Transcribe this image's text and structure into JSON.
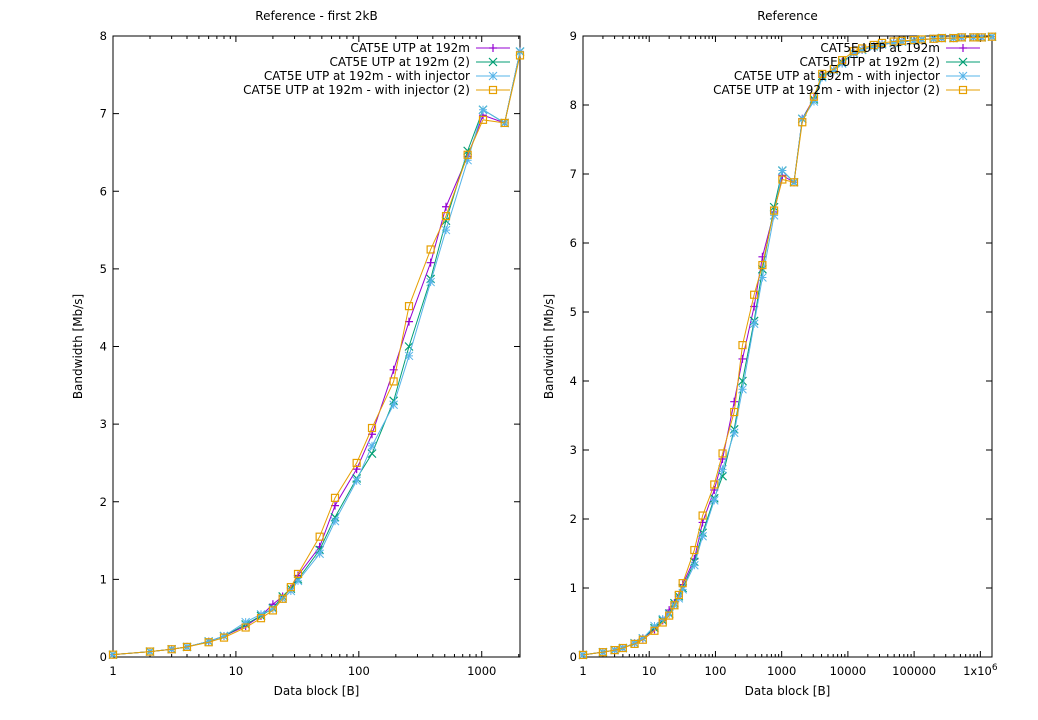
{
  "chart_data": [
    {
      "type": "line",
      "title": "Reference - first 2kB",
      "xlabel": "Data block [B]",
      "ylabel": "Bandwidth [Mb/s]",
      "xscale": "log",
      "xlim": [
        1,
        2048
      ],
      "ylim": [
        0,
        8
      ],
      "xticks": [
        1,
        10,
        100,
        1000
      ],
      "xtick_labels": [
        "1",
        "10",
        "100",
        "1000"
      ],
      "yticks": [
        0,
        1,
        2,
        3,
        4,
        5,
        6,
        7,
        8
      ],
      "ytick_labels": [
        "0",
        "1",
        "2",
        "3",
        "4",
        "5",
        "6",
        "7",
        "8"
      ],
      "grid": false,
      "legend_position": "top-right",
      "series": [
        {
          "name": "CAT5E UTP at 192m",
          "color": "#9400d3",
          "marker": "plus",
          "x": [
            1,
            2,
            3,
            4,
            6,
            8,
            12,
            16,
            20,
            24,
            28,
            32,
            48,
            64,
            96,
            128,
            192,
            256,
            384,
            512,
            768,
            1024,
            1536,
            2048
          ],
          "y": [
            0.03,
            0.07,
            0.1,
            0.13,
            0.2,
            0.27,
            0.4,
            0.53,
            0.68,
            0.78,
            0.88,
            1.05,
            1.42,
            1.95,
            2.42,
            2.87,
            3.7,
            4.32,
            5.08,
            5.8,
            6.45,
            6.98,
            6.88,
            7.8
          ]
        },
        {
          "name": "CAT5E UTP at 192m (2)",
          "color": "#009e73",
          "marker": "x",
          "x": [
            1,
            2,
            3,
            4,
            6,
            8,
            12,
            16,
            20,
            24,
            28,
            32,
            48,
            64,
            96,
            128,
            192,
            256,
            384,
            512,
            768,
            1024,
            1536,
            2048
          ],
          "y": [
            0.03,
            0.07,
            0.1,
            0.13,
            0.2,
            0.27,
            0.42,
            0.53,
            0.63,
            0.78,
            0.88,
            1.0,
            1.38,
            1.8,
            2.3,
            2.62,
            3.3,
            4.0,
            4.87,
            5.62,
            6.52,
            7.05,
            6.88,
            7.8
          ]
        },
        {
          "name": "CAT5E UTP at 192m - with injector",
          "color": "#56b4e9",
          "marker": "star",
          "x": [
            1,
            2,
            3,
            4,
            6,
            8,
            12,
            16,
            20,
            24,
            28,
            32,
            48,
            64,
            96,
            128,
            192,
            256,
            384,
            512,
            768,
            1024,
            1536,
            2048
          ],
          "y": [
            0.03,
            0.07,
            0.1,
            0.13,
            0.2,
            0.27,
            0.45,
            0.55,
            0.62,
            0.75,
            0.85,
            0.98,
            1.33,
            1.75,
            2.27,
            2.72,
            3.25,
            3.88,
            4.83,
            5.5,
            6.4,
            7.05,
            6.88,
            7.8
          ]
        },
        {
          "name": "CAT5E UTP at 192m - with injector (2)",
          "color": "#e69f00",
          "marker": "square",
          "x": [
            1,
            2,
            3,
            4,
            6,
            8,
            12,
            16,
            20,
            24,
            28,
            32,
            48,
            64,
            96,
            128,
            192,
            256,
            384,
            512,
            768,
            1024,
            1536,
            2048
          ],
          "y": [
            0.03,
            0.07,
            0.1,
            0.13,
            0.19,
            0.25,
            0.38,
            0.5,
            0.6,
            0.75,
            0.9,
            1.07,
            1.55,
            2.05,
            2.5,
            2.95,
            3.55,
            4.52,
            5.25,
            5.68,
            6.47,
            6.92,
            6.88,
            7.75
          ]
        }
      ]
    },
    {
      "type": "line",
      "title": "Reference",
      "xlabel": "Data block [B]",
      "ylabel": "Bandwidth [Mb/s]",
      "xscale": "log",
      "xlim": [
        1,
        1500000
      ],
      "ylim": [
        0,
        9
      ],
      "xticks": [
        1,
        10,
        100,
        1000,
        10000,
        100000,
        1000000
      ],
      "xtick_labels": [
        "1",
        "10",
        "100",
        "1000",
        "10000",
        "100000",
        "1x10"
      ],
      "xtick_superscript_last": "6",
      "yticks": [
        0,
        1,
        2,
        3,
        4,
        5,
        6,
        7,
        8,
        9
      ],
      "ytick_labels": [
        "0",
        "1",
        "2",
        "3",
        "4",
        "5",
        "6",
        "7",
        "8",
        "9"
      ],
      "grid": false,
      "legend_position": "top-right",
      "series": [
        {
          "name": "CAT5E UTP at 192m",
          "color": "#9400d3",
          "marker": "plus",
          "x": [
            1,
            2,
            3,
            4,
            6,
            8,
            12,
            16,
            20,
            24,
            28,
            32,
            48,
            64,
            96,
            128,
            192,
            256,
            384,
            512,
            768,
            1024,
            1536,
            2048,
            3072,
            4096,
            6144,
            8192,
            12288,
            16384,
            24576,
            32768,
            49152,
            65536,
            98304,
            131072,
            196608,
            262144,
            393216,
            524288,
            786432,
            1048576,
            1500000
          ],
          "y": [
            0.03,
            0.07,
            0.1,
            0.13,
            0.2,
            0.27,
            0.4,
            0.53,
            0.68,
            0.78,
            0.88,
            1.05,
            1.42,
            1.95,
            2.42,
            2.87,
            3.7,
            4.32,
            5.08,
            5.8,
            6.45,
            6.98,
            6.88,
            7.8,
            8.1,
            8.42,
            8.5,
            8.62,
            8.75,
            8.8,
            8.85,
            8.88,
            8.9,
            8.92,
            8.93,
            8.95,
            8.96,
            8.97,
            8.97,
            8.98,
            8.98,
            8.98,
            8.99
          ]
        },
        {
          "name": "CAT5E UTP at 192m (2)",
          "color": "#009e73",
          "marker": "x",
          "x": [
            1,
            2,
            3,
            4,
            6,
            8,
            12,
            16,
            20,
            24,
            28,
            32,
            48,
            64,
            96,
            128,
            192,
            256,
            384,
            512,
            768,
            1024,
            1536,
            2048,
            3072,
            4096,
            6144,
            8192,
            12288,
            16384,
            24576,
            32768,
            49152,
            65536,
            98304,
            131072,
            196608,
            262144,
            393216,
            524288,
            786432,
            1048576,
            1500000
          ],
          "y": [
            0.03,
            0.07,
            0.1,
            0.13,
            0.2,
            0.27,
            0.42,
            0.53,
            0.63,
            0.78,
            0.88,
            1.0,
            1.38,
            1.8,
            2.3,
            2.62,
            3.3,
            4.0,
            4.87,
            5.62,
            6.52,
            7.05,
            6.88,
            7.8,
            8.08,
            8.42,
            8.5,
            8.62,
            8.75,
            8.8,
            8.85,
            8.88,
            8.9,
            8.92,
            8.93,
            8.95,
            8.96,
            8.97,
            8.97,
            8.98,
            8.98,
            8.98,
            8.99
          ]
        },
        {
          "name": "CAT5E UTP at 192m - with injector",
          "color": "#56b4e9",
          "marker": "star",
          "x": [
            1,
            2,
            3,
            4,
            6,
            8,
            12,
            16,
            20,
            24,
            28,
            32,
            48,
            64,
            96,
            128,
            192,
            256,
            384,
            512,
            768,
            1024,
            1536,
            2048,
            3072,
            4096,
            6144,
            8192,
            12288,
            16384,
            24576,
            32768,
            49152,
            65536,
            98304,
            131072,
            196608,
            262144,
            393216,
            524288,
            786432,
            1048576,
            1500000
          ],
          "y": [
            0.03,
            0.07,
            0.1,
            0.13,
            0.2,
            0.27,
            0.45,
            0.55,
            0.62,
            0.75,
            0.85,
            0.98,
            1.33,
            1.75,
            2.27,
            2.72,
            3.25,
            3.88,
            4.83,
            5.5,
            6.4,
            7.05,
            6.88,
            7.8,
            8.05,
            8.4,
            8.5,
            8.6,
            8.75,
            8.8,
            8.85,
            8.88,
            8.9,
            8.92,
            8.93,
            8.95,
            8.96,
            8.97,
            8.97,
            8.98,
            8.98,
            8.98,
            8.99
          ]
        },
        {
          "name": "CAT5E UTP at 192m - with injector (2)",
          "color": "#e69f00",
          "marker": "square",
          "x": [
            1,
            2,
            3,
            4,
            6,
            8,
            12,
            16,
            20,
            24,
            28,
            32,
            48,
            64,
            96,
            128,
            192,
            256,
            384,
            512,
            768,
            1024,
            1536,
            2048,
            3072,
            4096,
            6144,
            8192,
            12288,
            16384,
            24576,
            32768,
            49152,
            65536,
            98304,
            131072,
            196608,
            262144,
            393216,
            524288,
            786432,
            1048576,
            1500000
          ],
          "y": [
            0.03,
            0.07,
            0.1,
            0.13,
            0.19,
            0.25,
            0.38,
            0.5,
            0.6,
            0.75,
            0.9,
            1.07,
            1.55,
            2.05,
            2.5,
            2.95,
            3.55,
            4.52,
            5.25,
            5.68,
            6.47,
            6.92,
            6.88,
            7.75,
            8.12,
            8.45,
            8.52,
            8.65,
            8.78,
            8.82,
            8.87,
            8.9,
            8.92,
            8.93,
            8.94,
            8.95,
            8.96,
            8.97,
            8.97,
            8.98,
            8.98,
            8.98,
            8.99
          ]
        }
      ]
    }
  ]
}
